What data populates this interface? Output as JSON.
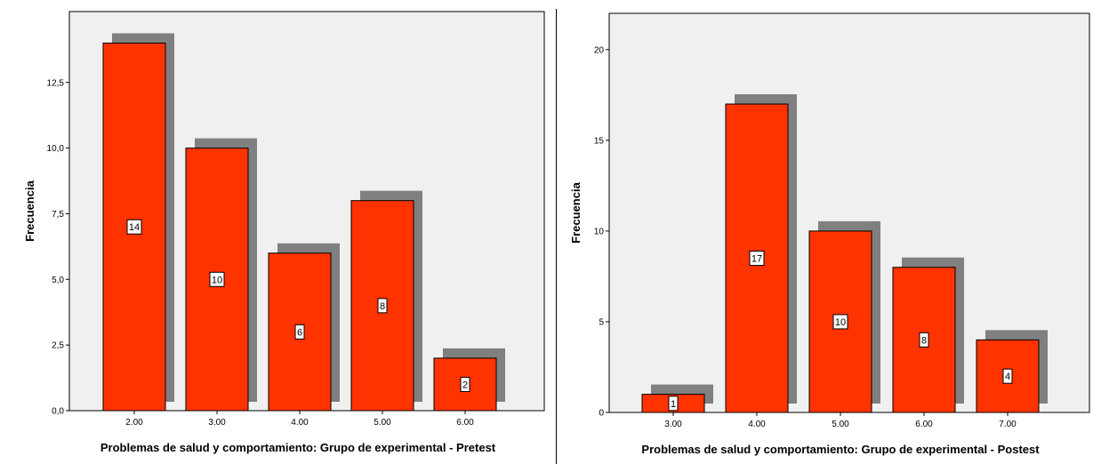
{
  "chart_data": [
    {
      "type": "bar",
      "categories": [
        "2.00",
        "3.00",
        "4.00",
        "5.00",
        "6.00"
      ],
      "values": [
        14,
        10,
        6,
        8,
        2
      ],
      "data_labels": [
        "14",
        "10",
        "6",
        "8",
        "2"
      ],
      "xlabel": "Problemas de salud y comportamiento: Grupo de experimental - Pretest",
      "ylabel": "Frecuencia",
      "ylim": [
        0,
        15.2
      ],
      "yticks": [
        0,
        2.5,
        5,
        7.5,
        10,
        12.5
      ],
      "ytick_labels": [
        "0,0",
        "2,5",
        "5,0",
        "7,5",
        "10,0",
        "12,5"
      ],
      "colors": {
        "bar": "#ff3300",
        "shadow": "#808080",
        "plot_bg": "#f0f0f0"
      }
    },
    {
      "type": "bar",
      "categories": [
        "3.00",
        "4.00",
        "5.00",
        "6.00",
        "7.00"
      ],
      "values": [
        1,
        17,
        10,
        8,
        4
      ],
      "data_labels": [
        "1",
        "17",
        "10",
        "8",
        "4"
      ],
      "xlabel": "Problemas de salud y comportamiento: Grupo de experimental - Postest",
      "ylabel": "Frecuencia",
      "ylim": [
        0,
        22
      ],
      "yticks": [
        0,
        5,
        10,
        15,
        20
      ],
      "ytick_labels": [
        "0",
        "5",
        "10",
        "15",
        "20"
      ],
      "colors": {
        "bar": "#ff3300",
        "shadow": "#808080",
        "plot_bg": "#f0f0f0"
      }
    }
  ]
}
